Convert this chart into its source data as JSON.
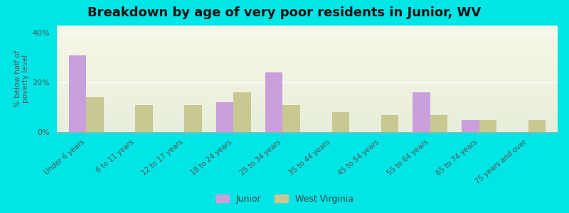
{
  "title": "Breakdown by age of very poor residents in Junior, WV",
  "ylabel": "% below half of\npoverty level",
  "categories": [
    "Under 6 years",
    "6 to 11 years",
    "12 to 17 years",
    "18 to 24 years",
    "25 to 34 years",
    "35 to 44 years",
    "45 to 54 years",
    "55 to 64 years",
    "65 to 74 years",
    "75 years and over"
  ],
  "junior_values": [
    31,
    0,
    0,
    12,
    24,
    0,
    0,
    16,
    5,
    0
  ],
  "wv_values": [
    14,
    11,
    11,
    16,
    11,
    8,
    7,
    7,
    5,
    5
  ],
  "junior_color": "#c9a0dc",
  "wv_color": "#c8c890",
  "ylim": [
    0,
    43
  ],
  "yticks": [
    0,
    20,
    40
  ],
  "ytick_labels": [
    "0%",
    "20%",
    "40%"
  ],
  "background_color": "#00e5e5",
  "plot_bg_top": "#f8f8e8",
  "plot_bg_bottom": "#e8eedc",
  "bar_width": 0.35,
  "title_fontsize": 13,
  "legend_labels": [
    "Junior",
    "West Virginia"
  ]
}
